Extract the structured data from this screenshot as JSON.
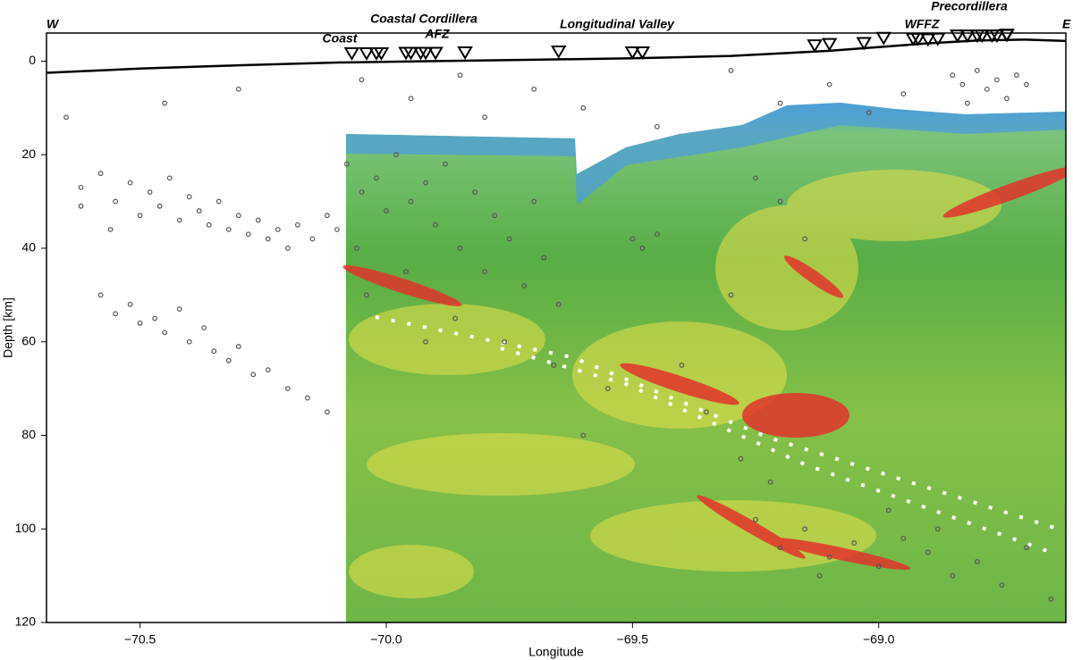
{
  "chart_data": {
    "type": "scatter",
    "annotations": [
      "W",
      "E",
      "Coast",
      "Coastal Cordillera",
      "AFZ",
      "Longitudinal Valley",
      "WFFZ",
      "Precordillera"
    ],
    "xlabel": "Longitude",
    "ylabel": "Depth [km]",
    "xlim": [
      -70.69,
      -68.62
    ],
    "ylim": [
      -6,
      120
    ],
    "xticks": [
      {
        "value": -70.5,
        "label": "−70.5"
      },
      {
        "value": -70.0,
        "label": "−70.0"
      },
      {
        "value": -69.5,
        "label": "−69.5"
      },
      {
        "value": -69.0,
        "label": "−69.0"
      }
    ],
    "yticks": [
      0,
      20,
      40,
      60,
      80,
      100,
      120
    ],
    "color": "#555555",
    "x": [
      -70.62,
      -70.58,
      -70.55,
      -70.52,
      -70.5,
      -70.48,
      -70.46,
      -70.44,
      -70.42,
      -70.4,
      -70.38,
      -70.36,
      -70.34,
      -70.32,
      -70.3,
      -70.28,
      -70.26,
      -70.24,
      -70.22,
      -70.2,
      -70.18,
      -70.15,
      -70.12,
      -70.1,
      -70.62,
      -70.56,
      -70.58,
      -70.55,
      -70.52,
      -70.5,
      -70.47,
      -70.45,
      -70.42,
      -70.4,
      -70.37,
      -70.35,
      -70.32,
      -70.3,
      -70.27,
      -70.24,
      -70.2,
      -70.16,
      -70.12,
      -70.08,
      -70.05,
      -70.02,
      -70.0,
      -69.98,
      -69.95,
      -69.92,
      -69.9,
      -69.88,
      -69.85,
      -69.82,
      -69.8,
      -69.78,
      -69.75,
      -69.72,
      -69.7,
      -69.68,
      -69.65,
      -70.06,
      -69.96,
      -69.86,
      -69.76,
      -69.66,
      -70.04,
      -69.92,
      -70.05,
      -69.95,
      -69.85,
      -69.8,
      -69.7,
      -69.6,
      -69.45,
      -69.3,
      -69.2,
      -69.1,
      -69.02,
      -68.95,
      -70.3,
      -70.45,
      -70.65,
      -68.85,
      -68.83,
      -68.8,
      -68.78,
      -68.76,
      -68.74,
      -68.72,
      -68.82,
      -68.7,
      -69.5,
      -69.48,
      -69.45,
      -69.25,
      -69.2,
      -69.15,
      -69.3,
      -69.4,
      -69.35,
      -69.28,
      -69.22,
      -69.6,
      -69.55,
      -69.25,
      -69.2,
      -69.15,
      -69.1,
      -69.05,
      -69.0,
      -68.95,
      -68.9,
      -68.85,
      -68.8,
      -68.75,
      -68.7,
      -68.65,
      -69.12,
      -68.98,
      -68.88
    ],
    "values": [
      27,
      24,
      30,
      26,
      33,
      28,
      31,
      25,
      34,
      29,
      32,
      35,
      30,
      36,
      33,
      37,
      34,
      38,
      36,
      40,
      35,
      38,
      33,
      36,
      31,
      36,
      50,
      54,
      52,
      56,
      55,
      58,
      53,
      60,
      57,
      62,
      64,
      61,
      67,
      66,
      70,
      72,
      75,
      22,
      28,
      25,
      32,
      20,
      30,
      26,
      35,
      22,
      40,
      28,
      45,
      33,
      38,
      48,
      30,
      42,
      52,
      40,
      45,
      55,
      60,
      65,
      50,
      60,
      4,
      8,
      3,
      12,
      6,
      10,
      14,
      2,
      9,
      5,
      11,
      7,
      6,
      9,
      12,
      3,
      5,
      2,
      6,
      4,
      8,
      3,
      9,
      5,
      38,
      40,
      37,
      25,
      30,
      38,
      50,
      65,
      75,
      85,
      90,
      80,
      70,
      98,
      104,
      100,
      106,
      103,
      108,
      102,
      105,
      110,
      107,
      112,
      104,
      115,
      110,
      96,
      100
    ],
    "topography": {
      "color": "#000000",
      "x": [
        -70.69,
        -70.5,
        -70.3,
        -70.1,
        -69.9,
        -69.7,
        -69.5,
        -69.3,
        -69.1,
        -68.9,
        -68.8,
        -68.7,
        -68.62
      ],
      "values": [
        2.5,
        1.6,
        0.9,
        0.3,
        0.0,
        -0.3,
        -0.6,
        -1.1,
        -2.2,
        -3.8,
        -4.4,
        -4.6,
        -4.3
      ]
    },
    "stations": {
      "color": "#000000",
      "x": [
        -70.07,
        -70.04,
        -70.02,
        -70.01,
        -69.96,
        -69.95,
        -69.93,
        -69.92,
        -69.9,
        -69.84,
        -69.65,
        -69.5,
        -69.48,
        -69.13,
        -69.1,
        -69.03,
        -68.99,
        -68.93,
        -68.92,
        -68.9,
        -68.88,
        -68.84,
        -68.82,
        -68.8,
        -68.79,
        -68.77,
        -68.76,
        -68.74,
        -68.74
      ],
      "values": [
        -1.6,
        -1.6,
        -1.6,
        -1.6,
        -1.7,
        -1.7,
        -1.7,
        -1.7,
        -1.7,
        -1.8,
        -2.0,
        -1.8,
        -1.8,
        -3.3,
        -3.6,
        -3.8,
        -4.9,
        -4.7,
        -4.7,
        -4.6,
        -4.7,
        -5.4,
        -5.4,
        -5.4,
        -5.4,
        -5.4,
        -5.4,
        -5.5,
        -5.6
      ]
    }
  }
}
